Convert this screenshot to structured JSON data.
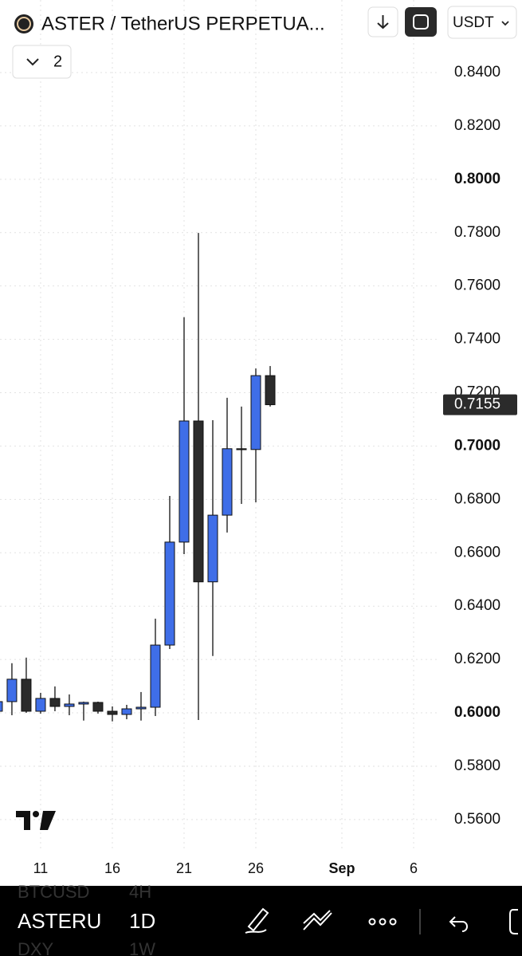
{
  "header": {
    "title": "ASTER / TetherUS PERPETUA...",
    "currency": "USDT",
    "indicator_count": "2"
  },
  "chart_data": {
    "type": "candlestick",
    "x": [
      8,
      9,
      10,
      11,
      12,
      13,
      14,
      15,
      16,
      17,
      18,
      19,
      20,
      21,
      22,
      23,
      24,
      25,
      26,
      27
    ],
    "open": [
      0.6006,
      0.6042,
      0.6126,
      0.6006,
      0.6054,
      0.6024,
      0.6033,
      0.6039,
      0.6006,
      0.5994,
      0.6015,
      0.6021,
      0.6254,
      0.664,
      0.7094,
      0.6491,
      0.6741,
      0.699,
      0.6987,
      0.7264
    ],
    "high": [
      0.605,
      0.6186,
      0.6207,
      0.6075,
      0.6099,
      0.6069,
      0.6042,
      0.6042,
      0.6024,
      0.603,
      0.6078,
      0.6353,
      0.6813,
      0.7483,
      0.7799,
      0.7097,
      0.7181,
      0.7148,
      0.7291,
      0.73
    ],
    "low": [
      0.6,
      0.5991,
      0.6,
      0.5997,
      0.6006,
      0.5991,
      0.5971,
      0.5997,
      0.5968,
      0.5976,
      0.5971,
      0.5988,
      0.6239,
      0.6595,
      0.5973,
      0.6213,
      0.6676,
      0.6783,
      0.6789,
      0.7148
    ],
    "close": [
      0.6042,
      0.6126,
      0.6006,
      0.6054,
      0.6024,
      0.6033,
      0.6039,
      0.6006,
      0.5994,
      0.6015,
      0.6021,
      0.6254,
      0.664,
      0.7094,
      0.6491,
      0.6741,
      0.699,
      0.6987,
      0.7264,
      0.7155
    ],
    "up_color": "#3f6ee8",
    "down_color": "#2b2b2b",
    "xlim": [
      8.17,
      38.72
    ],
    "xticks": [
      11,
      16,
      21,
      26,
      {
        "value": 32,
        "label": "Sep"
      },
      {
        "value": 37,
        "label": "6"
      }
    ],
    "ylim": [
      0.5489,
      0.8672
    ],
    "yticks": [
      {
        "value": 0.56,
        "label": "0.5600"
      },
      {
        "value": 0.58,
        "label": "0.5800"
      },
      {
        "value": 0.6,
        "label": "0.6000"
      },
      {
        "value": 0.62,
        "label": "0.6200"
      },
      {
        "value": 0.64,
        "label": "0.6400"
      },
      {
        "value": 0.66,
        "label": "0.6600"
      },
      {
        "value": 0.68,
        "label": "0.6800"
      },
      {
        "value": 0.7,
        "label": "0.7000"
      },
      {
        "value": 0.72,
        "label": "0.7200"
      },
      {
        "value": 0.74,
        "label": "0.7400"
      },
      {
        "value": 0.76,
        "label": "0.7600"
      },
      {
        "value": 0.78,
        "label": "0.7800"
      },
      {
        "value": 0.8,
        "label": "0.8000"
      },
      {
        "value": 0.82,
        "label": "0.8200"
      },
      {
        "value": 0.84,
        "label": "0.8400"
      }
    ],
    "last_price": 0.7155,
    "grid": true
  },
  "toolbar": {
    "symbol": "ASTERU",
    "interval": "1D",
    "ghost_symbol_above": "BTCUSD",
    "ghost_interval_above": "4H",
    "ghost_symbol_below": "DXY",
    "ghost_interval_below": "1W"
  }
}
